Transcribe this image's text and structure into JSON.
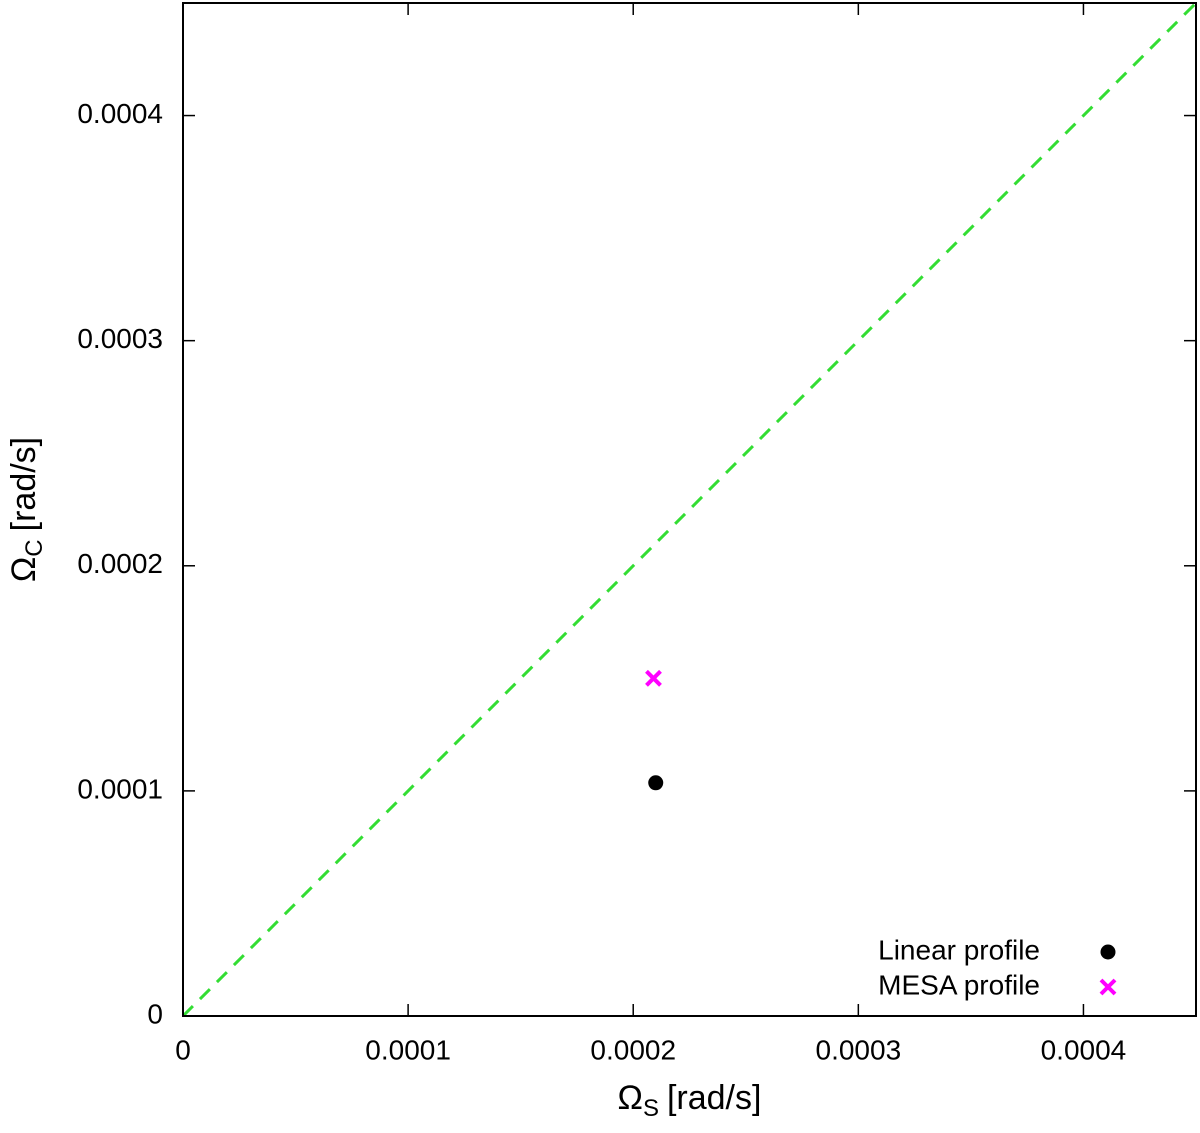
{
  "chart_data": {
    "type": "scatter",
    "x_label": {
      "symbol": "Ω",
      "subscript": "S",
      "unit": "[rad/s]"
    },
    "y_label": {
      "symbol": "Ω",
      "subscript": "C",
      "unit": "[rad/s]"
    },
    "xlim": [
      0,
      0.00045
    ],
    "ylim": [
      0,
      0.00045
    ],
    "xticks": [
      0,
      0.0001,
      0.0002,
      0.0003,
      0.0004
    ],
    "yticks": [
      0,
      0.0001,
      0.0002,
      0.0003,
      0.0004
    ],
    "grid": false,
    "legend": "lower right",
    "diagonal": {
      "color": "#33dd33",
      "dashed": true
    },
    "series": [
      {
        "name": "Linear profile",
        "color": "#000000",
        "marker": "circle",
        "x": [
          0.00021
        ],
        "values": [
          0.0001036
        ]
      },
      {
        "name": "MESA profile",
        "color": "#ff00ff",
        "marker": "cross",
        "x": [
          0.000209
        ],
        "values": [
          0.00015
        ]
      }
    ]
  }
}
